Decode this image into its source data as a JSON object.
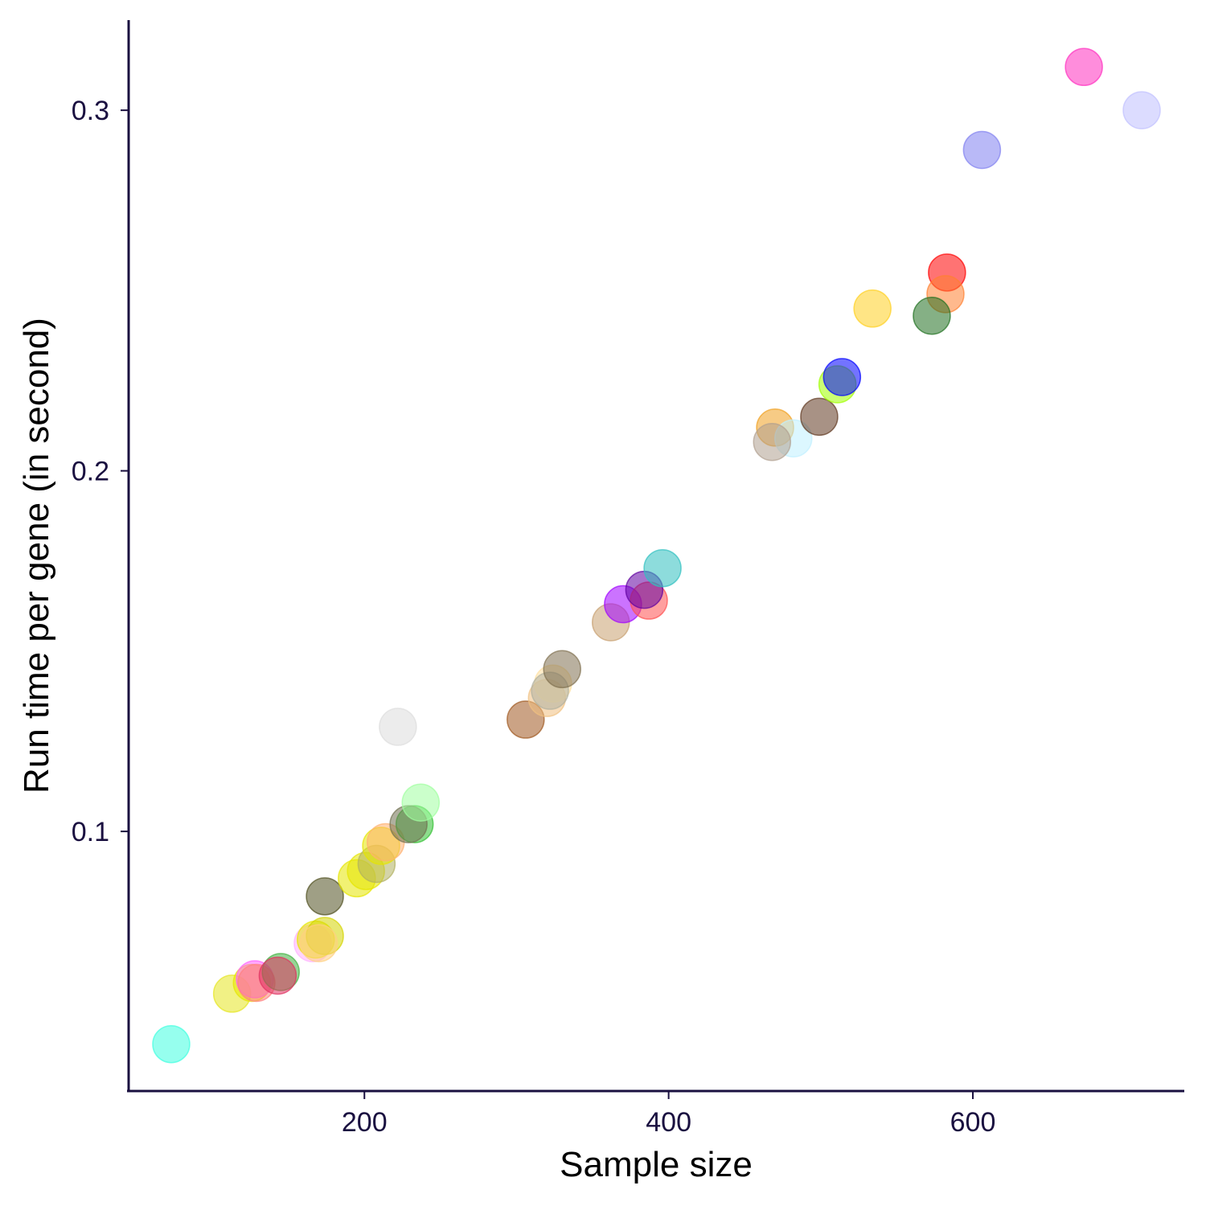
{
  "chart_data": {
    "type": "scatter",
    "title": "",
    "xlabel": "Sample size",
    "ylabel": "Run time per gene (in second)",
    "xlim": [
      45,
      739
    ],
    "ylim": [
      0.028,
      0.325
    ],
    "xticks": [
      200,
      400,
      600
    ],
    "yticks": [
      0.1,
      0.2,
      0.3
    ],
    "xtick_labels": [
      "200",
      "400",
      "600"
    ],
    "ytick_labels": [
      "0.1",
      "0.2",
      "0.3"
    ],
    "grid": false,
    "legend": "none",
    "points": [
      {
        "x": 73,
        "y": 0.041,
        "color": "#40ffe0"
      },
      {
        "x": 113,
        "y": 0.055,
        "color": "#e6e620"
      },
      {
        "x": 126,
        "y": 0.058,
        "color": "#e6e600"
      },
      {
        "x": 128,
        "y": 0.059,
        "color": "#ff60ff"
      },
      {
        "x": 129,
        "y": 0.058,
        "color": "#ff8080"
      },
      {
        "x": 145,
        "y": 0.061,
        "color": "#40b040"
      },
      {
        "x": 143,
        "y": 0.06,
        "color": "#e03060"
      },
      {
        "x": 166,
        "y": 0.069,
        "color": "#ffb0ff"
      },
      {
        "x": 168,
        "y": 0.07,
        "color": "#e6e600"
      },
      {
        "x": 174,
        "y": 0.071,
        "color": "#d4d400"
      },
      {
        "x": 170,
        "y": 0.069,
        "color": "#ffd080"
      },
      {
        "x": 174,
        "y": 0.082,
        "color": "#505020"
      },
      {
        "x": 195,
        "y": 0.087,
        "color": "#e6e600"
      },
      {
        "x": 201,
        "y": 0.089,
        "color": "#e6e600"
      },
      {
        "x": 208,
        "y": 0.091,
        "color": "#b0b060"
      },
      {
        "x": 211,
        "y": 0.096,
        "color": "#e6e600"
      },
      {
        "x": 214,
        "y": 0.097,
        "color": "#ffb070"
      },
      {
        "x": 222,
        "y": 0.129,
        "color": "#dddddd"
      },
      {
        "x": 233,
        "y": 0.102,
        "color": "#30c030"
      },
      {
        "x": 229,
        "y": 0.102,
        "color": "#707050"
      },
      {
        "x": 237,
        "y": 0.108,
        "color": "#a0ffa0"
      },
      {
        "x": 306,
        "y": 0.131,
        "color": "#a05820"
      },
      {
        "x": 320,
        "y": 0.137,
        "color": "#f0c080"
      },
      {
        "x": 324,
        "y": 0.141,
        "color": "#ffe0a0"
      },
      {
        "x": 322,
        "y": 0.139,
        "color": "#b0b0a0"
      },
      {
        "x": 330,
        "y": 0.145,
        "color": "#807050"
      },
      {
        "x": 362,
        "y": 0.158,
        "color": "#c8a070"
      },
      {
        "x": 370,
        "y": 0.163,
        "color": "#a000ff"
      },
      {
        "x": 387,
        "y": 0.164,
        "color": "#ff5050"
      },
      {
        "x": 384,
        "y": 0.167,
        "color": "#6000a0"
      },
      {
        "x": 396,
        "y": 0.173,
        "color": "#30c0c0"
      },
      {
        "x": 470,
        "y": 0.212,
        "color": "#f0a020"
      },
      {
        "x": 482,
        "y": 0.209,
        "color": "#c0f0ff"
      },
      {
        "x": 468,
        "y": 0.208,
        "color": "#b0a090"
      },
      {
        "x": 499,
        "y": 0.215,
        "color": "#603820"
      },
      {
        "x": 511,
        "y": 0.224,
        "color": "#a0ff00"
      },
      {
        "x": 514,
        "y": 0.226,
        "color": "#0000ff"
      },
      {
        "x": 534,
        "y": 0.245,
        "color": "#ffd020"
      },
      {
        "x": 583,
        "y": 0.255,
        "color": "#ff0000"
      },
      {
        "x": 582,
        "y": 0.249,
        "color": "#ff8030"
      },
      {
        "x": 573,
        "y": 0.243,
        "color": "#207020"
      },
      {
        "x": 606,
        "y": 0.289,
        "color": "#8080f0"
      },
      {
        "x": 673,
        "y": 0.312,
        "color": "#ff30c0"
      },
      {
        "x": 711,
        "y": 0.3,
        "color": "#c0c0ff"
      }
    ]
  }
}
